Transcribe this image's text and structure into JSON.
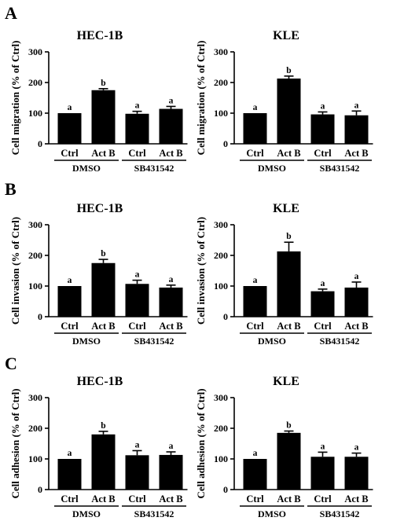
{
  "panels": [
    {
      "letter": "A",
      "ylabel": "Cell migration (% of Ctrl)"
    },
    {
      "letter": "B",
      "ylabel": "Cell invasion (% of Ctrl)"
    },
    {
      "letter": "C",
      "ylabel": "Cell adhesion (% of Ctrl)"
    }
  ],
  "chart_data": [
    {
      "panel": "A",
      "type": "bar",
      "title": "HEC-1B",
      "ylabel": "Cell migration (% of Ctrl)",
      "ylim": [
        0,
        300
      ],
      "yticks": [
        0,
        100,
        200,
        300
      ],
      "categories": [
        "Ctrl",
        "Act B",
        "Ctrl",
        "Act B"
      ],
      "groups": [
        {
          "label": "DMSO",
          "span": [
            0,
            1
          ]
        },
        {
          "label": "SB431542",
          "span": [
            2,
            3
          ]
        }
      ],
      "values": [
        100,
        175,
        98,
        114
      ],
      "errors": [
        0,
        5,
        8,
        8
      ],
      "significance": [
        "a",
        "b",
        "a",
        "a"
      ]
    },
    {
      "panel": "A",
      "type": "bar",
      "title": "KLE",
      "ylabel": "Cell migration (% of Ctrl)",
      "ylim": [
        0,
        300
      ],
      "yticks": [
        0,
        100,
        200,
        300
      ],
      "categories": [
        "Ctrl",
        "Act B",
        "Ctrl",
        "Act B"
      ],
      "groups": [
        {
          "label": "DMSO",
          "span": [
            0,
            1
          ]
        },
        {
          "label": "SB431542",
          "span": [
            2,
            3
          ]
        }
      ],
      "values": [
        100,
        213,
        96,
        93
      ],
      "errors": [
        0,
        8,
        8,
        14
      ],
      "significance": [
        "a",
        "b",
        "a",
        "a"
      ]
    },
    {
      "panel": "B",
      "type": "bar",
      "title": "HEC-1B",
      "ylabel": "Cell invasion (% of Ctrl)",
      "ylim": [
        0,
        300
      ],
      "yticks": [
        0,
        100,
        200,
        300
      ],
      "categories": [
        "Ctrl",
        "Act B",
        "Ctrl",
        "Act B"
      ],
      "groups": [
        {
          "label": "DMSO",
          "span": [
            0,
            1
          ]
        },
        {
          "label": "SB431542",
          "span": [
            2,
            3
          ]
        }
      ],
      "values": [
        100,
        175,
        107,
        95
      ],
      "errors": [
        0,
        12,
        12,
        8
      ],
      "significance": [
        "a",
        "b",
        "a",
        "a"
      ]
    },
    {
      "panel": "B",
      "type": "bar",
      "title": "KLE",
      "ylabel": "Cell invasion (% of Ctrl)",
      "ylim": [
        0,
        300
      ],
      "yticks": [
        0,
        100,
        200,
        300
      ],
      "categories": [
        "Ctrl",
        "Act B",
        "Ctrl",
        "Act B"
      ],
      "groups": [
        {
          "label": "DMSO",
          "span": [
            0,
            1
          ]
        },
        {
          "label": "SB431542",
          "span": [
            2,
            3
          ]
        }
      ],
      "values": [
        100,
        213,
        83,
        95
      ],
      "errors": [
        0,
        30,
        7,
        18
      ],
      "significance": [
        "a",
        "b",
        "a",
        "a"
      ]
    },
    {
      "panel": "C",
      "type": "bar",
      "title": "HEC-1B",
      "ylabel": "Cell adhesion (% of Ctrl)",
      "ylim": [
        0,
        300
      ],
      "yticks": [
        0,
        100,
        200,
        300
      ],
      "categories": [
        "Ctrl",
        "Act B",
        "Ctrl",
        "Act B"
      ],
      "groups": [
        {
          "label": "DMSO",
          "span": [
            0,
            1
          ]
        },
        {
          "label": "SB431542",
          "span": [
            2,
            3
          ]
        }
      ],
      "values": [
        100,
        180,
        112,
        113
      ],
      "errors": [
        0,
        10,
        15,
        10
      ],
      "significance": [
        "a",
        "b",
        "a",
        "a"
      ]
    },
    {
      "panel": "C",
      "type": "bar",
      "title": "KLE",
      "ylabel": "Cell adhesion (% of Ctrl)",
      "ylim": [
        0,
        300
      ],
      "yticks": [
        0,
        100,
        200,
        300
      ],
      "categories": [
        "Ctrl",
        "Act B",
        "Ctrl",
        "Act B"
      ],
      "groups": [
        {
          "label": "DMSO",
          "span": [
            0,
            1
          ]
        },
        {
          "label": "SB431542",
          "span": [
            2,
            3
          ]
        }
      ],
      "values": [
        100,
        185,
        107,
        107
      ],
      "errors": [
        0,
        6,
        15,
        12
      ],
      "significance": [
        "a",
        "b",
        "a",
        "a"
      ]
    }
  ]
}
